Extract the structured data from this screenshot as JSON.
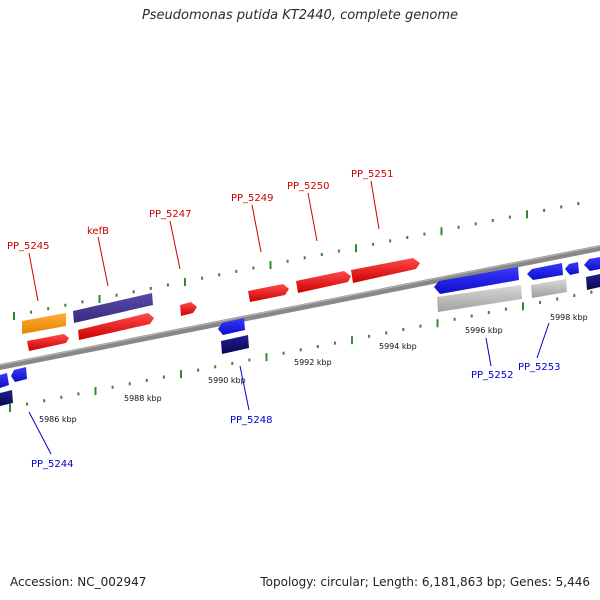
{
  "title": "Pseudomonas putida KT2440, complete genome",
  "footer": {
    "accession": "Accession: NC_002947",
    "summary": "Topology: circular; Length: 6,181,863 bp; Genes: 5,446"
  },
  "colors": {
    "forward_label": "#cc0000",
    "reverse_label": "#0000cc",
    "backbone": "#8a8a8a",
    "tick": "#2e8b2e",
    "red_gene": "#ee1111",
    "blue_gene": "#1a1aee",
    "navy_gene": "#101070",
    "orange_gene": "#ff9a1a",
    "purple_gene": "#4a3a96",
    "gray_gene": "#bdbdbd"
  },
  "scale_labels": [
    "5986 kbp",
    "5988 kbp",
    "5990 kbp",
    "5992 kbp",
    "5994 kbp",
    "5996 kbp",
    "5998 kbp"
  ],
  "forward_genes": [
    "PP_5245",
    "kefB",
    "PP_5247",
    "PP_5249",
    "PP_5250",
    "PP_5251"
  ],
  "reverse_genes": [
    "PP_5244",
    "PP_5248",
    "PP_5252",
    "PP_5253"
  ]
}
